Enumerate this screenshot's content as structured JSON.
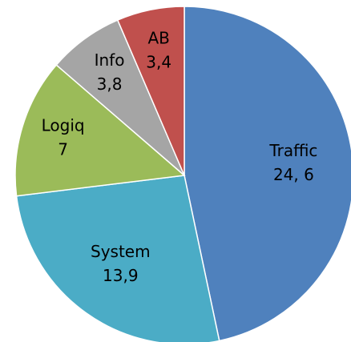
{
  "chart_data": {
    "type": "pie",
    "categories": [
      "Traffic",
      "System",
      "Logiq",
      "Info",
      "AB"
    ],
    "values": [
      24.6,
      13.9,
      7,
      3.8,
      3.4
    ],
    "value_labels": [
      "24, 6",
      "13,9",
      "7",
      "3,8",
      "3,4"
    ],
    "colors": [
      "#4f81bd",
      "#4bacc6",
      "#9bbb59",
      "#a5a5a5",
      "#c0504d"
    ]
  }
}
